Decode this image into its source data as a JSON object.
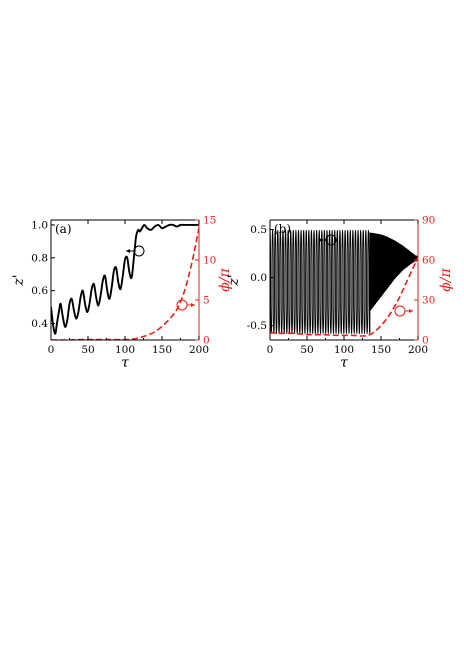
{
  "colors": {
    "primary": "#000000",
    "secondary": "#e2231a"
  },
  "chart_data": [
    {
      "type": "line",
      "panel_label": "(a)",
      "xlabel": "τ",
      "ylabel_left": "z'",
      "ylabel_right": "ϕ/π",
      "xlim": [
        0,
        200
      ],
      "ylim_left": [
        0.3,
        1.03
      ],
      "ylim_right": [
        0,
        15
      ],
      "xticks": [
        "0",
        "50",
        "100",
        "150",
        "200"
      ],
      "yticks_left": [
        "0.4",
        "0.6",
        "0.8",
        "1.0"
      ],
      "yticks_right": [
        "0",
        "5",
        "10",
        "15"
      ],
      "grid": false,
      "series": [
        {
          "axis": "left",
          "style": "solid",
          "color": "#000000",
          "x": [
            0,
            2,
            4,
            6,
            8,
            11,
            13,
            16,
            19,
            22,
            25,
            28,
            31,
            34,
            37,
            40,
            43,
            46,
            49,
            52,
            55,
            58,
            61,
            64,
            67,
            70,
            73,
            76,
            79,
            82,
            85,
            88,
            91,
            94,
            97,
            100,
            103,
            106,
            109,
            112,
            115,
            118,
            120,
            123,
            126,
            130,
            135,
            140,
            145,
            150,
            155,
            160,
            165,
            170,
            175,
            180,
            185,
            190,
            195,
            200
          ],
          "y": [
            0.5,
            0.42,
            0.36,
            0.34,
            0.4,
            0.48,
            0.52,
            0.44,
            0.38,
            0.42,
            0.52,
            0.55,
            0.48,
            0.43,
            0.47,
            0.56,
            0.6,
            0.52,
            0.47,
            0.52,
            0.61,
            0.64,
            0.56,
            0.51,
            0.57,
            0.66,
            0.69,
            0.6,
            0.55,
            0.62,
            0.72,
            0.74,
            0.65,
            0.61,
            0.69,
            0.79,
            0.8,
            0.71,
            0.68,
            0.8,
            0.93,
            0.97,
            0.96,
            0.98,
            1.0,
            0.98,
            0.97,
            0.99,
            1.0,
            0.98,
            0.99,
            1.0,
            1.0,
            0.99,
            1.0,
            1.0,
            1.0,
            1.0,
            1.0,
            1.0
          ]
        },
        {
          "axis": "right",
          "style": "dashed",
          "color": "#e2231a",
          "x": [
            0,
            20,
            40,
            60,
            80,
            100,
            110,
            120,
            130,
            140,
            150,
            160,
            170,
            180,
            190,
            200
          ],
          "y": [
            0.0,
            0.0,
            0.05,
            0.05,
            0.05,
            0.05,
            0.1,
            0.3,
            0.6,
            1.0,
            1.7,
            2.6,
            3.8,
            6.0,
            9.5,
            14.0
          ]
        }
      ],
      "annotations": [
        {
          "text": "circle with arrow pointing left",
          "target_axis": "left"
        },
        {
          "text": "circle with arrow pointing right",
          "target_axis": "right"
        }
      ]
    },
    {
      "type": "line",
      "panel_label": "(b)",
      "xlabel": "τ",
      "ylabel_left": "z'",
      "ylabel_right": "ϕ/π",
      "xlim": [
        0,
        200
      ],
      "ylim_left": [
        -0.65,
        0.6
      ],
      "ylim_right": [
        0,
        90
      ],
      "xticks": [
        "0",
        "50",
        "100",
        "150",
        "200"
      ],
      "yticks_left": [
        "-0.5",
        "0.0",
        "0.5"
      ],
      "yticks_right": [
        "0",
        "30",
        "60",
        "90"
      ],
      "grid": false,
      "series": [
        {
          "axis": "left",
          "style": "solid",
          "color": "#000000",
          "description": "fast oscillation between -0.58 and 0.49 until τ≈135, then a shrinking envelope converging to 0.2 at τ=200",
          "period_early": 3.5,
          "period_late": 0.9,
          "switch_tau": 135,
          "amplitude_early_max": 0.49,
          "amplitude_early_min": -0.58,
          "envelope_late": {
            "x": [
              135,
              150,
              160,
              170,
              180,
              190,
              200
            ],
            "upper": [
              0.47,
              0.45,
              0.42,
              0.38,
              0.33,
              0.27,
              0.21
            ],
            "lower": [
              -0.35,
              -0.2,
              -0.1,
              0.0,
              0.08,
              0.14,
              0.19
            ]
          }
        },
        {
          "axis": "right",
          "style": "dashed",
          "color": "#e2231a",
          "x": [
            0,
            10,
            30,
            50,
            70,
            90,
            110,
            125,
            135,
            145,
            155,
            165,
            175,
            185,
            195,
            200
          ],
          "y": [
            6,
            5,
            5,
            4,
            4,
            3.5,
            3.5,
            3,
            4,
            8,
            14,
            22,
            32,
            44,
            56,
            62
          ]
        }
      ],
      "annotations": [
        {
          "text": "circle with arrow pointing left",
          "target_axis": "left"
        },
        {
          "text": "circle with arrow pointing right",
          "target_axis": "right"
        }
      ]
    }
  ]
}
